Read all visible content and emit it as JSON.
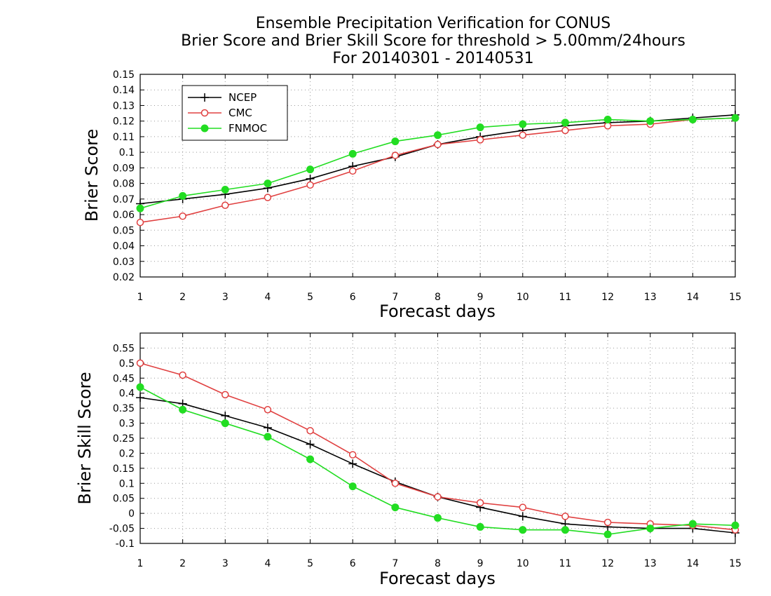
{
  "title_lines": [
    "Ensemble Precipitation Verification for CONUS",
    "Brier Score and Brier Skill Score for threshold > 5.00mm/24hours",
    "For 20140301 - 20140531"
  ],
  "colors": {
    "NCEP": "#000000",
    "CMC": "#e04040",
    "FNMOC": "#22dd22",
    "grid": "#999999"
  },
  "chart_data": [
    {
      "type": "line",
      "xlabel": "Forecast days",
      "ylabel": "Brier Score",
      "x": [
        1,
        2,
        3,
        4,
        5,
        6,
        7,
        8,
        9,
        10,
        11,
        12,
        13,
        14,
        15
      ],
      "xlim": [
        1,
        15
      ],
      "ylim": [
        0.02,
        0.15
      ],
      "yticks": [
        "0.02",
        "0.03",
        "0.04",
        "0.05",
        "0.06",
        "0.07",
        "0.08",
        "0.09",
        "0.1",
        "0.11",
        "0.12",
        "0.13",
        "0.14",
        "0.15"
      ],
      "grid": true,
      "legend": "top-left",
      "series": [
        {
          "name": "NCEP",
          "marker": "plus",
          "values": [
            0.067,
            0.07,
            0.073,
            0.077,
            0.083,
            0.091,
            0.097,
            0.105,
            0.11,
            0.114,
            0.117,
            0.119,
            0.12,
            0.122,
            0.124
          ]
        },
        {
          "name": "CMC",
          "marker": "open-circle",
          "values": [
            0.055,
            0.059,
            0.066,
            0.071,
            0.079,
            0.088,
            0.098,
            0.105,
            0.108,
            0.111,
            0.114,
            0.117,
            0.118,
            0.121,
            0.122
          ]
        },
        {
          "name": "FNMOC",
          "marker": "filled-circle",
          "values": [
            0.064,
            0.072,
            0.076,
            0.08,
            0.089,
            0.099,
            0.107,
            0.111,
            0.116,
            0.118,
            0.119,
            0.121,
            0.12,
            0.121,
            0.122
          ]
        }
      ]
    },
    {
      "type": "line",
      "xlabel": "Forecast days",
      "ylabel": "Brier Skill Score",
      "x": [
        1,
        2,
        3,
        4,
        5,
        6,
        7,
        8,
        9,
        10,
        11,
        12,
        13,
        14,
        15
      ],
      "xlim": [
        1,
        15
      ],
      "ylim": [
        -0.1,
        0.6
      ],
      "yticks": [
        "-0.1",
        "-0.05",
        "0",
        "0.05",
        "0.1",
        "0.15",
        "0.2",
        "0.25",
        "0.3",
        "0.35",
        "0.4",
        "0.45",
        "0.5",
        "0.55"
      ],
      "grid": true,
      "series": [
        {
          "name": "NCEP",
          "marker": "plus",
          "values": [
            0.385,
            0.365,
            0.325,
            0.285,
            0.23,
            0.165,
            0.105,
            0.055,
            0.02,
            -0.01,
            -0.035,
            -0.045,
            -0.05,
            -0.05,
            -0.065
          ]
        },
        {
          "name": "CMC",
          "marker": "open-circle",
          "values": [
            0.5,
            0.46,
            0.395,
            0.345,
            0.275,
            0.195,
            0.1,
            0.055,
            0.035,
            0.02,
            -0.01,
            -0.03,
            -0.035,
            -0.04,
            -0.055
          ]
        },
        {
          "name": "FNMOC",
          "marker": "filled-circle",
          "values": [
            0.42,
            0.345,
            0.3,
            0.255,
            0.18,
            0.09,
            0.02,
            -0.015,
            -0.045,
            -0.055,
            -0.055,
            -0.07,
            -0.05,
            -0.035,
            -0.04
          ]
        }
      ]
    }
  ]
}
